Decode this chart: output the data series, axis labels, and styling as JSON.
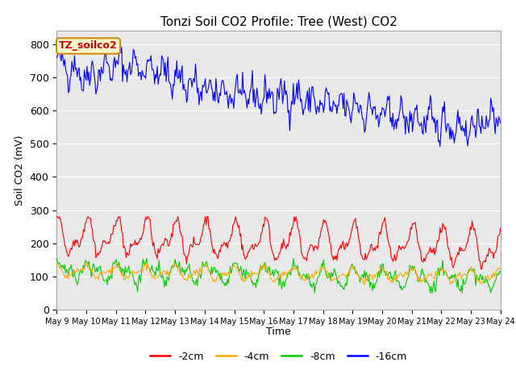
{
  "title": "Tonzi Soil CO2 Profile: Tree (West) CO2",
  "ylabel": "Soil CO2 (mV)",
  "xlabel": "Time",
  "ylim": [
    0,
    840
  ],
  "yticks": [
    0,
    100,
    200,
    300,
    400,
    500,
    600,
    700,
    800
  ],
  "bg_color": "#e8e8e8",
  "fig_color": "#ffffff",
  "label_box_text": "TZ_soilco2",
  "label_box_facecolor": "#ffffcc",
  "label_box_edgecolor": "#cc8800",
  "label_box_textcolor": "#cc0000",
  "colors": {
    "cm2": "#ff0000",
    "cm4": "#ffaa00",
    "cm8": "#00cc00",
    "cm16": "#0000ff"
  },
  "legend_labels": [
    "-2cm",
    "-4cm",
    "-8cm",
    "-16cm"
  ],
  "xtick_labels": [
    "May 9",
    "May 10",
    "May 11",
    "May 12",
    "May 13",
    "May 14",
    "May 15",
    "May 16",
    "May 17",
    "May 18",
    "May 19",
    "May 20",
    "May 21",
    "May 22",
    "May 23",
    "May 24"
  ],
  "n_points": 500,
  "seed": 42
}
